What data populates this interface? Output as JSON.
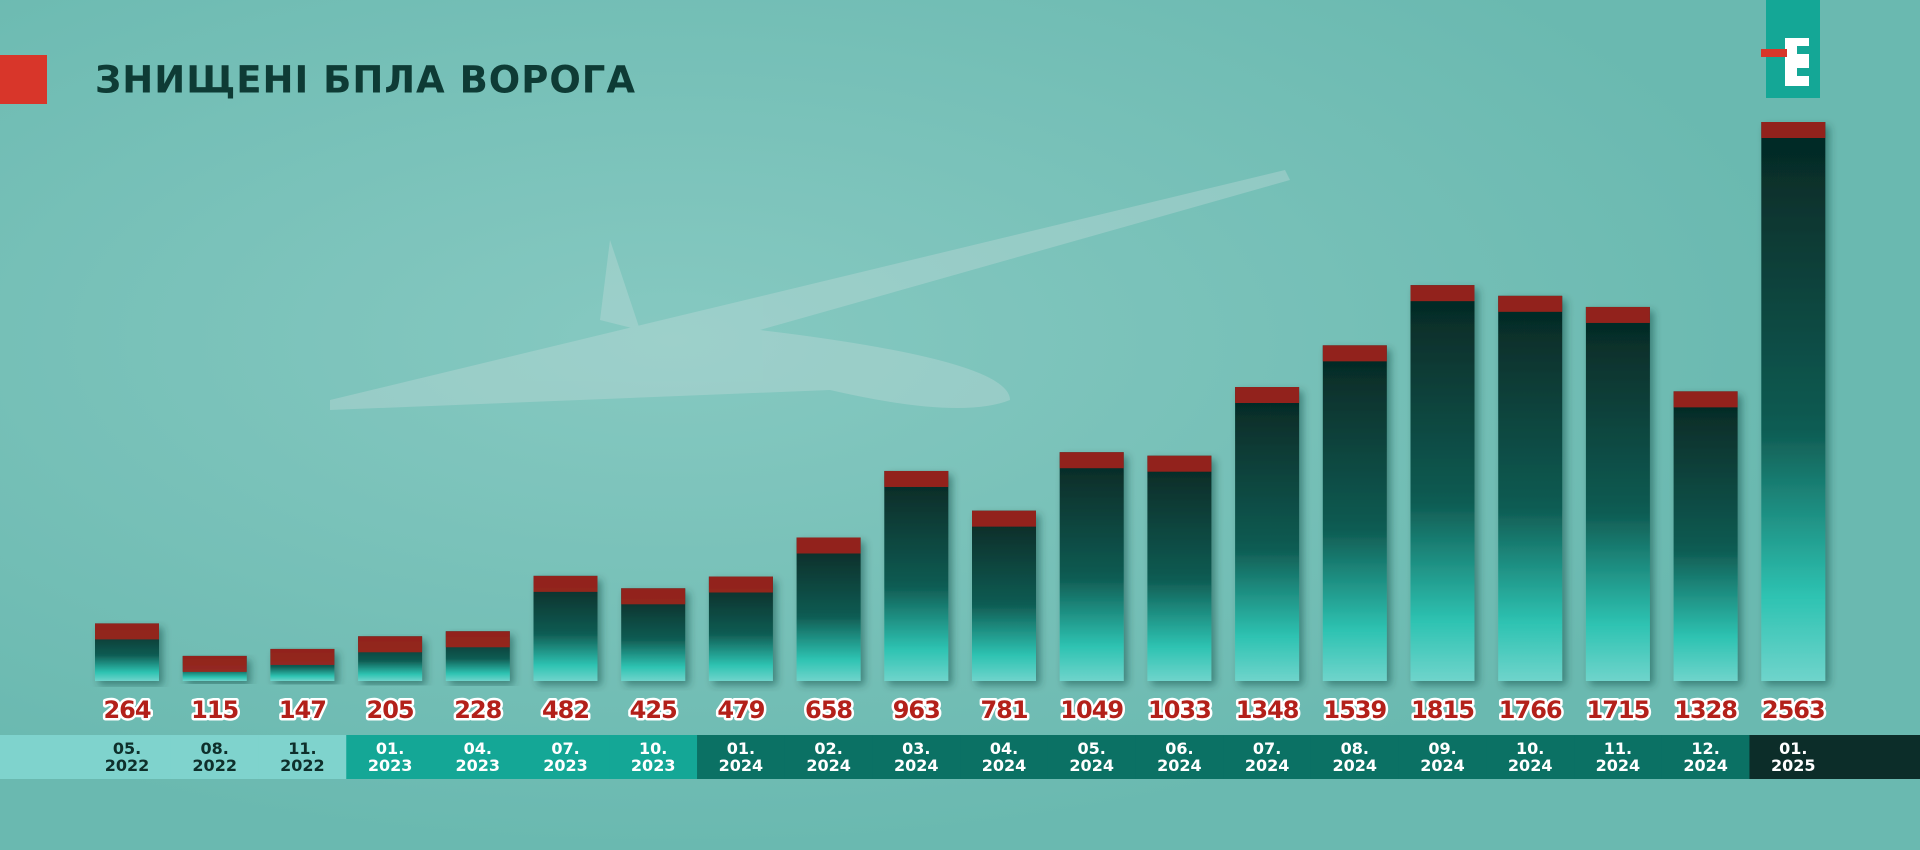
{
  "chart_data": {
    "type": "bar",
    "title": "ЗНИЩЕНІ БПЛА ВОРОГА",
    "categories": [
      "05. 2022",
      "08. 2022",
      "11. 2022",
      "01. 2023",
      "04. 2023",
      "07. 2023",
      "10. 2023",
      "01. 2024",
      "02. 2024",
      "03. 2024",
      "04. 2024",
      "05. 2024",
      "06. 2024",
      "07. 2024",
      "08. 2024",
      "09. 2024",
      "10. 2024",
      "11. 2024",
      "12. 2024",
      "01. 2025"
    ],
    "values": [
      264,
      115,
      147,
      205,
      228,
      482,
      425,
      479,
      658,
      963,
      781,
      1049,
      1033,
      1348,
      1539,
      1815,
      1766,
      1715,
      1328,
      2563
    ],
    "color": "#0b3a34",
    "cap_color": "#a2231c",
    "value_label_color": "#b3201a",
    "label_backgrounds": [
      "#7fd3cd",
      "#7fd3cd",
      "#7fd3cd",
      "#14a796",
      "#14a796",
      "#14a796",
      "#14a796",
      "#0b7164",
      "#0b7164",
      "#0b7164",
      "#0b7164",
      "#0b7164",
      "#0b7164",
      "#0b7164",
      "#0b7164",
      "#0b7164",
      "#0b7164",
      "#0b7164",
      "#0b7164",
      "#0c2d29"
    ]
  }
}
